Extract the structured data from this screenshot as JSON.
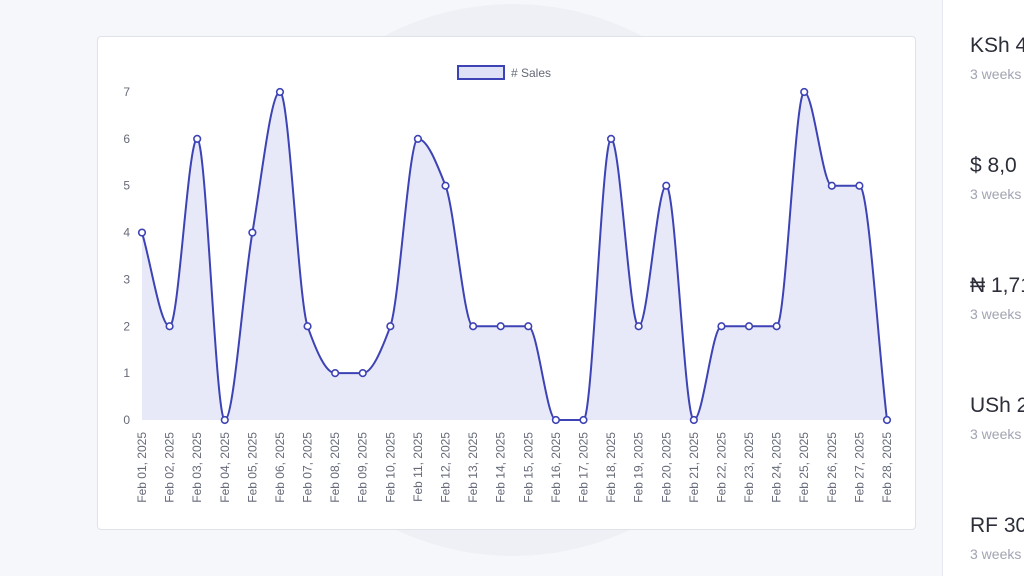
{
  "chart_data": {
    "type": "line",
    "area_fill": true,
    "legend": {
      "position": "top",
      "entries": [
        "# Sales"
      ]
    },
    "series": [
      {
        "name": "# Sales",
        "color": "#3d43b4",
        "fill": "#dfe1f6",
        "values": [
          4,
          2,
          6,
          0,
          4,
          7,
          2,
          1,
          1,
          2,
          6,
          5,
          2,
          2,
          2,
          0,
          0,
          6,
          2,
          5,
          0,
          2,
          2,
          2,
          7,
          5,
          5,
          0
        ]
      }
    ],
    "categories": [
      "Feb 01, 2025",
      "Feb 02, 2025",
      "Feb 03, 2025",
      "Feb 04, 2025",
      "Feb 05, 2025",
      "Feb 06, 2025",
      "Feb 07, 2025",
      "Feb 08, 2025",
      "Feb 09, 2025",
      "Feb 10, 2025",
      "Feb 11, 2025",
      "Feb 12, 2025",
      "Feb 13, 2025",
      "Feb 14, 2025",
      "Feb 15, 2025",
      "Feb 16, 2025",
      "Feb 17, 2025",
      "Feb 18, 2025",
      "Feb 19, 2025",
      "Feb 20, 2025",
      "Feb 21, 2025",
      "Feb 22, 2025",
      "Feb 23, 2025",
      "Feb 24, 2025",
      "Feb 25, 2025",
      "Feb 26, 2025",
      "Feb 27, 2025",
      "Feb 28, 2025"
    ],
    "ylim": [
      0,
      7
    ],
    "yticks": [
      "0",
      "1",
      "2",
      "3",
      "4",
      "5",
      "6",
      "7"
    ],
    "grid": false
  },
  "side_panel": {
    "items": [
      {
        "amount": "KSh 4",
        "sub": "3 weeks"
      },
      {
        "amount": "$ 8,0",
        "sub": "3 weeks"
      },
      {
        "amount": "₦ 1,71",
        "sub": "3 weeks"
      },
      {
        "amount": "USh 2",
        "sub": "3 weeks"
      },
      {
        "amount": "RF 30",
        "sub": "3 weeks"
      }
    ]
  }
}
